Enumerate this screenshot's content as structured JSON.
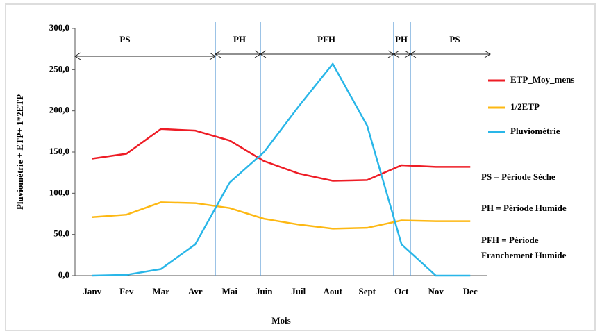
{
  "chart_data": {
    "type": "line",
    "y_label": "Pluviométrie + ETP+ 1*2ETP",
    "x_label": "Mois",
    "categories": [
      "Janv",
      "Fev",
      "Mar",
      "Avr",
      "Mai",
      "Juin",
      "Juil",
      "Aout",
      "Sept",
      "Oct",
      "Nov",
      "Dec"
    ],
    "series": [
      {
        "name": "ETP_Moy_mens",
        "color": "#ee1c25",
        "values": [
          142,
          148,
          178,
          176,
          164,
          139,
          124,
          115,
          116,
          134,
          132,
          132
        ]
      },
      {
        "name": "1/2ETP",
        "color": "#fdb813",
        "values": [
          71,
          74,
          89,
          88,
          82,
          69,
          62,
          57,
          58,
          67,
          66,
          66
        ]
      },
      {
        "name": "Pluviométrie",
        "color": "#29b6e8",
        "values": [
          0,
          1,
          8,
          38,
          113,
          150,
          205,
          257,
          182,
          38,
          0,
          0
        ]
      }
    ],
    "ylim": [
      0,
      300
    ],
    "yticks": [
      {
        "value": 0,
        "label": "0,0"
      },
      {
        "value": 50,
        "label": "50,0"
      },
      {
        "value": 100,
        "label": "100,0"
      },
      {
        "value": 150,
        "label": "150,0"
      },
      {
        "value": 200,
        "label": "200,0"
      },
      {
        "value": 250,
        "label": "250,0"
      },
      {
        "value": 300,
        "label": "300,0"
      }
    ],
    "periods": [
      "PS",
      "PH",
      "PFH",
      "PH",
      "PS"
    ],
    "notes": [
      "PS = Période Sèche",
      "PH = Période Humide",
      "PFH = Période",
      "Franchement Humide"
    ]
  }
}
